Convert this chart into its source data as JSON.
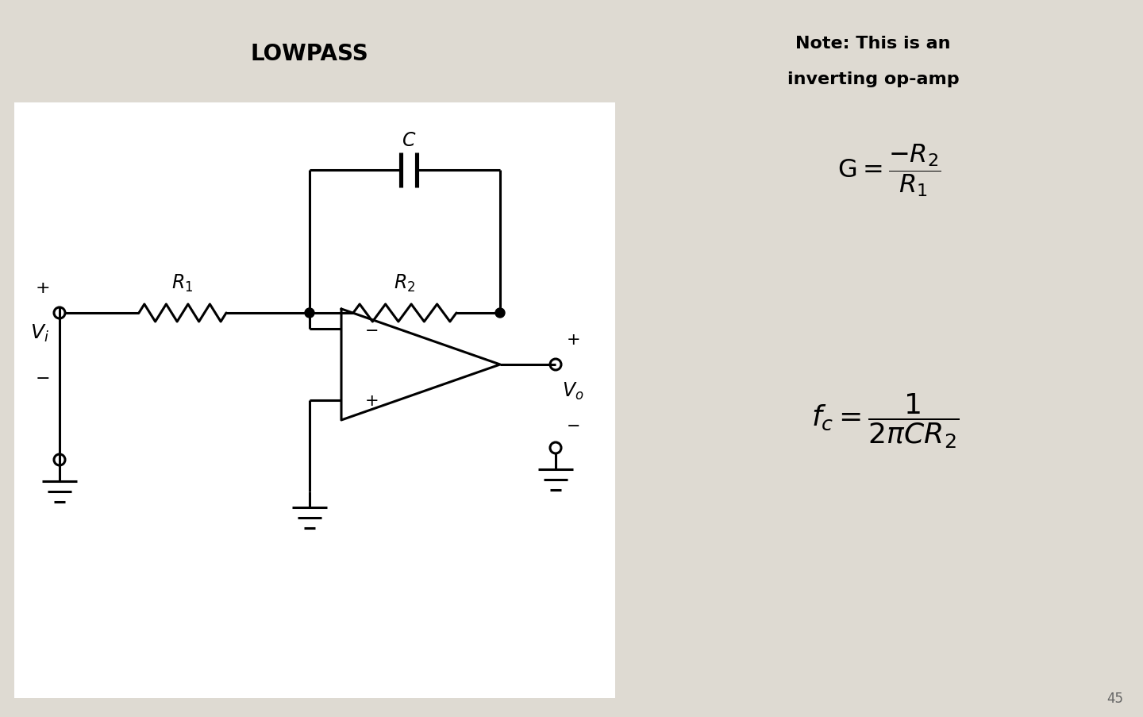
{
  "bg_color": "#dedad2",
  "circuit_bg": "#ffffff",
  "title": "LOWPASS",
  "title_fontsize": 20,
  "note_line1": "Note: This is an",
  "note_line2": "inverting op-amp",
  "line_color": "#000000",
  "page_number": "45"
}
